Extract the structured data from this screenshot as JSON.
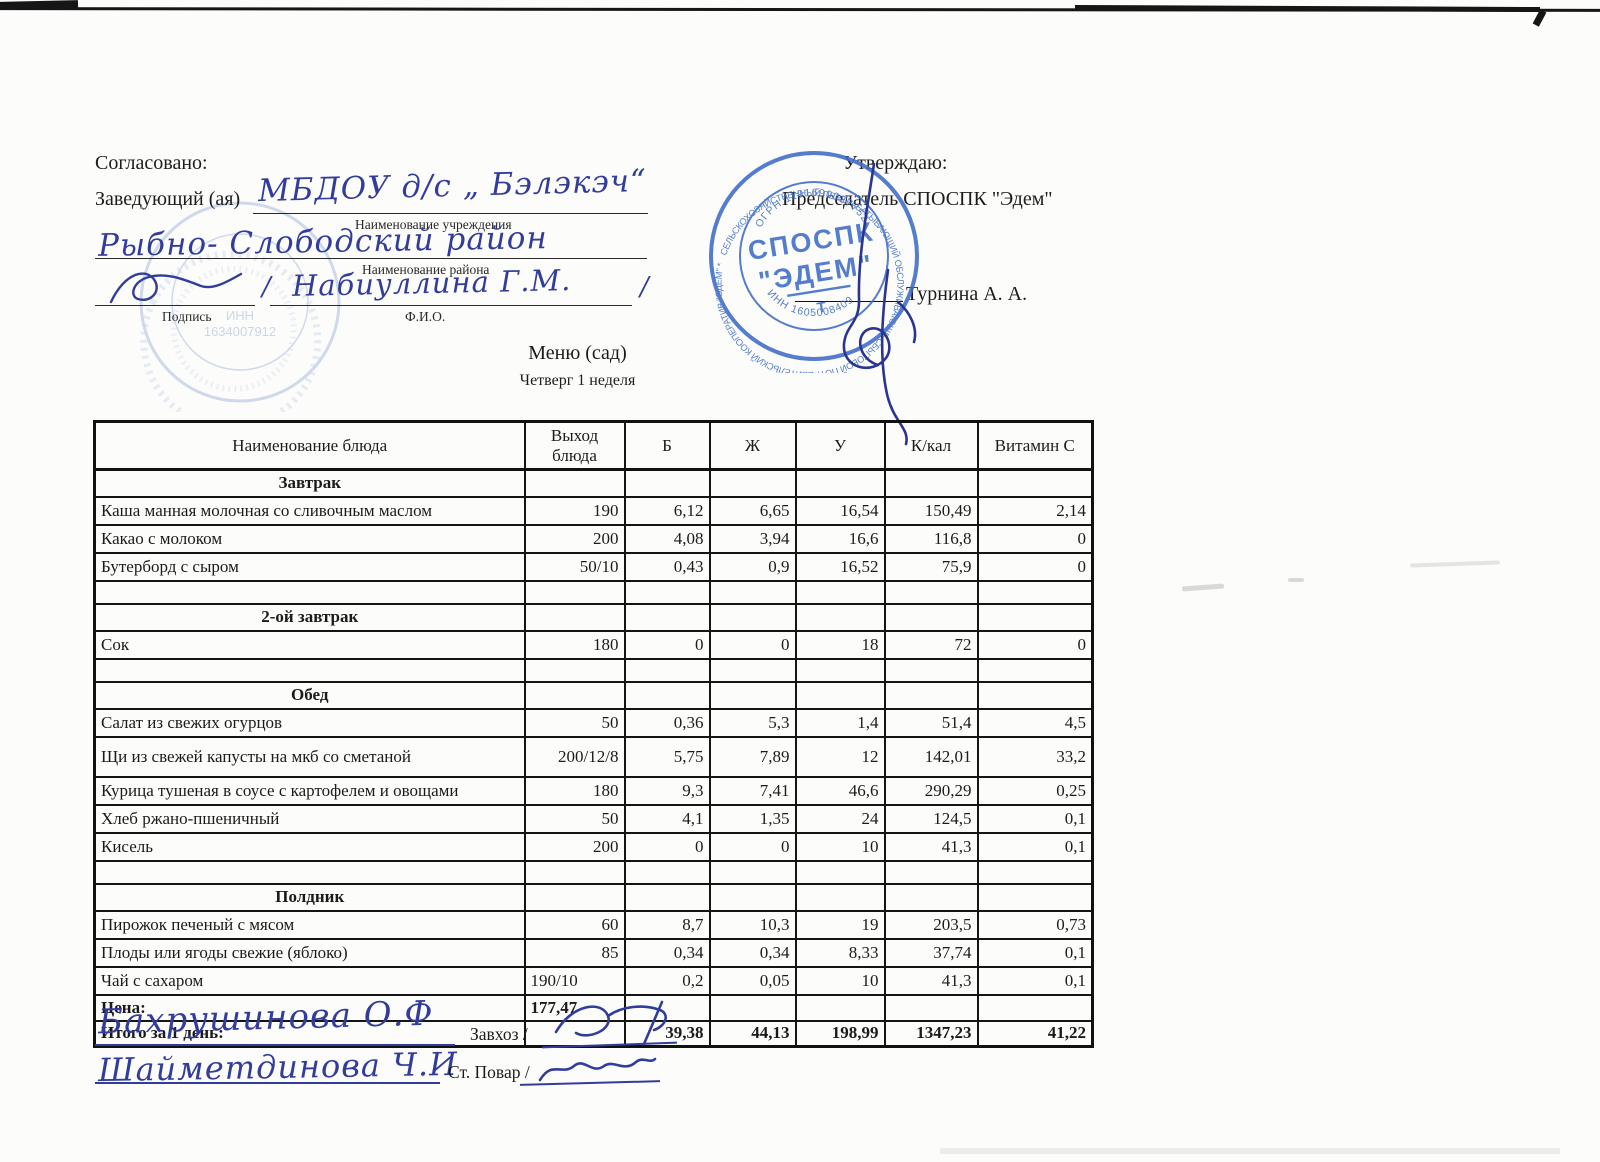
{
  "approved_left": {
    "title": "Согласовано:",
    "role_label": "Заведующий (ая)",
    "institution_hand": "МБДОУ д/с „ Бэлэкэч“",
    "institution_caption": "Наименование учреждения",
    "district_hand": "Рыбно- Слободский район",
    "district_caption": "Наименование района",
    "fio_hand": "Набиуллина Г.М.",
    "slash": "/",
    "signature_caption": "Подпись",
    "fio_caption": "Ф.И.О."
  },
  "approved_right": {
    "title": "Утверждаю:",
    "role": "Председатель СПОСПК \"Эдем\"",
    "fio": "Турнина А. А."
  },
  "stamp_right": {
    "ring_text": "СЕЛЬСКОХОЗЯЙСТВЕННЫЙ ПЕРЕРАБАТЫВАЮЩИЙ ОБСЛУЖИВАЮЩЕ-СБЫТОВОЙ ПОТРЕБИТЕЛЬСКИЙ КООПЕРАТИВ \"ЭДЕМ\" *",
    "ogrn_text": "ОГРН 1191690037752",
    "inn_text": "ИНН 1605008409",
    "center_line1": "СПОСПК",
    "center_line2": "\"ЭДЕМ\"",
    "center_line3": "Т",
    "color": "#3f6cc8"
  },
  "stamp_left": {
    "inn_label": "ИНН",
    "inn_number": "1634007912"
  },
  "menu": {
    "title": "Меню (сад)",
    "subtitle": "Четверг 1 неделя"
  },
  "table": {
    "headers": [
      "Наименование блюда",
      "Выход блюда",
      "Б",
      "Ж",
      "У",
      "К/кал",
      "Витамин С"
    ],
    "rows": [
      {
        "type": "section",
        "name": "Завтрак"
      },
      {
        "type": "item",
        "name": "Каша манная молочная со сливочным маслом",
        "out": "190",
        "b": "6,12",
        "zh": "6,65",
        "u": "16,54",
        "kcal": "150,49",
        "vit": "2,14"
      },
      {
        "type": "item",
        "name": "Какао с молоком",
        "out": "200",
        "b": "4,08",
        "zh": "3,94",
        "u": "16,6",
        "kcal": "116,8",
        "vit": "0"
      },
      {
        "type": "item",
        "name": "Бутерборд с сыром",
        "out": "50/10",
        "b": "0,43",
        "zh": "0,9",
        "u": "16,52",
        "kcal": "75,9",
        "vit": "0"
      },
      {
        "type": "empty"
      },
      {
        "type": "section",
        "name": "2-ой завтрак"
      },
      {
        "type": "item",
        "name": "Сок",
        "out": "180",
        "b": "0",
        "zh": "0",
        "u": "18",
        "kcal": "72",
        "vit": "0"
      },
      {
        "type": "empty"
      },
      {
        "type": "section",
        "name": "Обед"
      },
      {
        "type": "item",
        "name": "Салат из свежих огурцов",
        "out": "50",
        "b": "0,36",
        "zh": "5,3",
        "u": "1,4",
        "kcal": "51,4",
        "vit": "4,5"
      },
      {
        "type": "item",
        "tall": true,
        "name": "Щи из свежей капусты на мкб со сметаной",
        "out": "200/12/8",
        "b": "5,75",
        "zh": "7,89",
        "u": "12",
        "kcal": "142,01",
        "vit": "33,2"
      },
      {
        "type": "item",
        "name": "Курица тушеная в соусе с картофелем и овощами",
        "out": "180",
        "b": "9,3",
        "zh": "7,41",
        "u": "46,6",
        "kcal": "290,29",
        "vit": "0,25"
      },
      {
        "type": "item",
        "name": "Хлеб ржано-пшеничный",
        "out": "50",
        "b": "4,1",
        "zh": "1,35",
        "u": "24",
        "kcal": "124,5",
        "vit": "0,1"
      },
      {
        "type": "item",
        "name": "Кисель",
        "out": "200",
        "b": "0",
        "zh": "0",
        "u": "10",
        "kcal": "41,3",
        "vit": "0,1"
      },
      {
        "type": "empty"
      },
      {
        "type": "section",
        "name": "Полдник"
      },
      {
        "type": "item",
        "name": "Пирожок печеный с мясом",
        "out": "60",
        "b": "8,7",
        "zh": "10,3",
        "u": "19",
        "kcal": "203,5",
        "vit": "0,73"
      },
      {
        "type": "item",
        "name": "Плоды или ягоды свежие (яблоко)",
        "out": "85",
        "b": "0,34",
        "zh": "0,34",
        "u": "8,33",
        "kcal": "37,74",
        "vit": "0,1"
      },
      {
        "type": "item",
        "name": "Чай с сахаром",
        "out": "190/10",
        "outAlign": "left",
        "b": "0,2",
        "zh": "0,05",
        "u": "10",
        "kcal": "41,3",
        "vit": "0,1"
      },
      {
        "type": "price",
        "name": "Цена:",
        "out": "177,47",
        "outAlign": "left"
      },
      {
        "type": "total",
        "name": "Итого за 1 день:",
        "b": "39,38",
        "zh": "44,13",
        "u": "198,99",
        "kcal": "1347,23",
        "vit": "41,22"
      }
    ]
  },
  "footer": {
    "zavhoz_hand": "Бахрушинова О.Ф",
    "zavhoz_label": "Завхоз /",
    "povar_hand": "Шайметдинова Ч.И",
    "povar_label": "Ст. Повар /"
  }
}
